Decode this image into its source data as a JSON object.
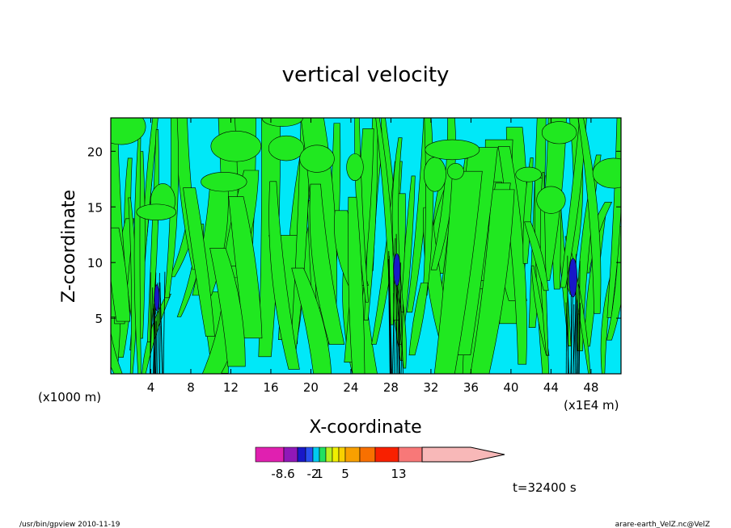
{
  "chart_data": {
    "type": "heatmap",
    "title": "vertical velocity",
    "xlabel": "X-coordinate",
    "ylabel": "Z-coordinate",
    "x_unit_left": "(x1000 m)",
    "x_unit_right": "(x1E4 m)",
    "xlim": [
      0,
      51
    ],
    "ylim": [
      0,
      23
    ],
    "x_ticks": [
      "4",
      "8",
      "12",
      "16",
      "20",
      "24",
      "28",
      "32",
      "36",
      "40",
      "44",
      "48"
    ],
    "x_tick_values": [
      4,
      8,
      12,
      16,
      20,
      24,
      28,
      32,
      36,
      40,
      44,
      48
    ],
    "y_ticks": [
      "5",
      "10",
      "15",
      "20"
    ],
    "y_tick_values": [
      5,
      10,
      15,
      20
    ],
    "time_label": "t=32400 s",
    "colorbar": {
      "labels": [
        "-8.6",
        "-2",
        "1",
        "5",
        "13"
      ],
      "colors": [
        "#e020b0",
        "#9018b8",
        "#1818c8",
        "#2850f0",
        "#00ccf0",
        "#20e060",
        "#b8f020",
        "#f0f000",
        "#f8d000",
        "#f8a000",
        "#f87000",
        "#f82000",
        "#f87878",
        "#f8b8b8"
      ]
    },
    "field_colors": {
      "background": "#00e8f8",
      "positive": "#20e820",
      "strong_negative": "#1818c8"
    }
  },
  "footer": {
    "left": "/usr/bin/gpview   2010-11-19",
    "right": "arare-earth_VelZ.nc@VelZ"
  }
}
